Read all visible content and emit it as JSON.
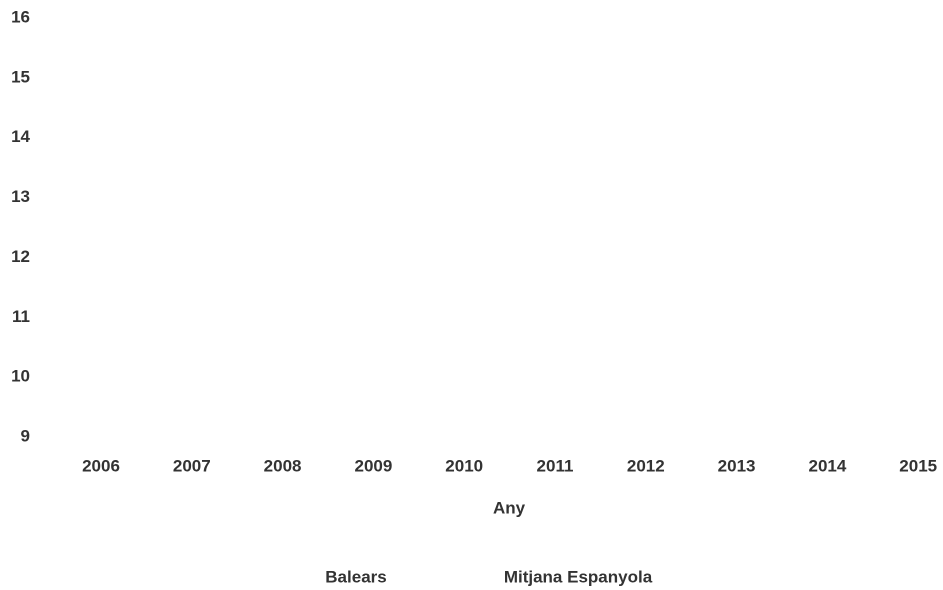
{
  "chart_data": {
    "type": "line",
    "x_label": "Any",
    "categories": [
      "2006",
      "2007",
      "2008",
      "2009",
      "2010",
      "2011",
      "2012",
      "2013",
      "2014",
      "2015"
    ],
    "series": [
      {
        "name": "Balears",
        "values": [
          null,
          null,
          null,
          null,
          null,
          null,
          null,
          null,
          null,
          null
        ]
      },
      {
        "name": "Mitjana Espanyola",
        "values": [
          null,
          null,
          null,
          null,
          null,
          null,
          null,
          null,
          null,
          null
        ]
      }
    ],
    "ylim": [
      9,
      16
    ],
    "yticks": [
      9,
      10,
      11,
      12,
      13,
      14,
      15,
      16
    ]
  }
}
